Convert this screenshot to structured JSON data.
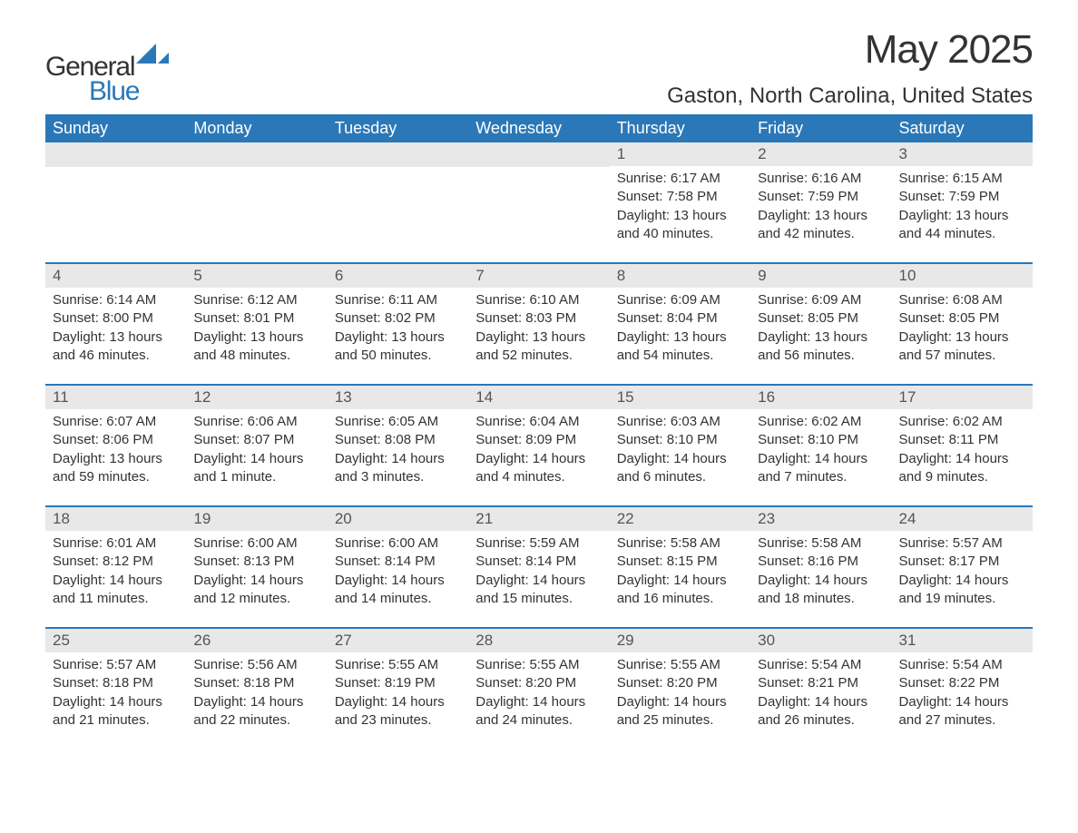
{
  "brand": {
    "part1": "General",
    "part2": "Blue",
    "brand_color": "#2a78b8"
  },
  "title": "May 2025",
  "location": "Gaston, North Carolina, United States",
  "colors": {
    "header_bg": "#2a78b8",
    "header_text": "#ffffff",
    "daynum_bg": "#e8e8e8",
    "text": "#333333",
    "border": "#2a78b8",
    "background": "#ffffff"
  },
  "weekdays": [
    "Sunday",
    "Monday",
    "Tuesday",
    "Wednesday",
    "Thursday",
    "Friday",
    "Saturday"
  ],
  "weeks": [
    [
      {
        "n": "",
        "sunrise": "",
        "sunset": "",
        "daylight": ""
      },
      {
        "n": "",
        "sunrise": "",
        "sunset": "",
        "daylight": ""
      },
      {
        "n": "",
        "sunrise": "",
        "sunset": "",
        "daylight": ""
      },
      {
        "n": "",
        "sunrise": "",
        "sunset": "",
        "daylight": ""
      },
      {
        "n": "1",
        "sunrise": "Sunrise: 6:17 AM",
        "sunset": "Sunset: 7:58 PM",
        "daylight": "Daylight: 13 hours and 40 minutes."
      },
      {
        "n": "2",
        "sunrise": "Sunrise: 6:16 AM",
        "sunset": "Sunset: 7:59 PM",
        "daylight": "Daylight: 13 hours and 42 minutes."
      },
      {
        "n": "3",
        "sunrise": "Sunrise: 6:15 AM",
        "sunset": "Sunset: 7:59 PM",
        "daylight": "Daylight: 13 hours and 44 minutes."
      }
    ],
    [
      {
        "n": "4",
        "sunrise": "Sunrise: 6:14 AM",
        "sunset": "Sunset: 8:00 PM",
        "daylight": "Daylight: 13 hours and 46 minutes."
      },
      {
        "n": "5",
        "sunrise": "Sunrise: 6:12 AM",
        "sunset": "Sunset: 8:01 PM",
        "daylight": "Daylight: 13 hours and 48 minutes."
      },
      {
        "n": "6",
        "sunrise": "Sunrise: 6:11 AM",
        "sunset": "Sunset: 8:02 PM",
        "daylight": "Daylight: 13 hours and 50 minutes."
      },
      {
        "n": "7",
        "sunrise": "Sunrise: 6:10 AM",
        "sunset": "Sunset: 8:03 PM",
        "daylight": "Daylight: 13 hours and 52 minutes."
      },
      {
        "n": "8",
        "sunrise": "Sunrise: 6:09 AM",
        "sunset": "Sunset: 8:04 PM",
        "daylight": "Daylight: 13 hours and 54 minutes."
      },
      {
        "n": "9",
        "sunrise": "Sunrise: 6:09 AM",
        "sunset": "Sunset: 8:05 PM",
        "daylight": "Daylight: 13 hours and 56 minutes."
      },
      {
        "n": "10",
        "sunrise": "Sunrise: 6:08 AM",
        "sunset": "Sunset: 8:05 PM",
        "daylight": "Daylight: 13 hours and 57 minutes."
      }
    ],
    [
      {
        "n": "11",
        "sunrise": "Sunrise: 6:07 AM",
        "sunset": "Sunset: 8:06 PM",
        "daylight": "Daylight: 13 hours and 59 minutes."
      },
      {
        "n": "12",
        "sunrise": "Sunrise: 6:06 AM",
        "sunset": "Sunset: 8:07 PM",
        "daylight": "Daylight: 14 hours and 1 minute."
      },
      {
        "n": "13",
        "sunrise": "Sunrise: 6:05 AM",
        "sunset": "Sunset: 8:08 PM",
        "daylight": "Daylight: 14 hours and 3 minutes."
      },
      {
        "n": "14",
        "sunrise": "Sunrise: 6:04 AM",
        "sunset": "Sunset: 8:09 PM",
        "daylight": "Daylight: 14 hours and 4 minutes."
      },
      {
        "n": "15",
        "sunrise": "Sunrise: 6:03 AM",
        "sunset": "Sunset: 8:10 PM",
        "daylight": "Daylight: 14 hours and 6 minutes."
      },
      {
        "n": "16",
        "sunrise": "Sunrise: 6:02 AM",
        "sunset": "Sunset: 8:10 PM",
        "daylight": "Daylight: 14 hours and 7 minutes."
      },
      {
        "n": "17",
        "sunrise": "Sunrise: 6:02 AM",
        "sunset": "Sunset: 8:11 PM",
        "daylight": "Daylight: 14 hours and 9 minutes."
      }
    ],
    [
      {
        "n": "18",
        "sunrise": "Sunrise: 6:01 AM",
        "sunset": "Sunset: 8:12 PM",
        "daylight": "Daylight: 14 hours and 11 minutes."
      },
      {
        "n": "19",
        "sunrise": "Sunrise: 6:00 AM",
        "sunset": "Sunset: 8:13 PM",
        "daylight": "Daylight: 14 hours and 12 minutes."
      },
      {
        "n": "20",
        "sunrise": "Sunrise: 6:00 AM",
        "sunset": "Sunset: 8:14 PM",
        "daylight": "Daylight: 14 hours and 14 minutes."
      },
      {
        "n": "21",
        "sunrise": "Sunrise: 5:59 AM",
        "sunset": "Sunset: 8:14 PM",
        "daylight": "Daylight: 14 hours and 15 minutes."
      },
      {
        "n": "22",
        "sunrise": "Sunrise: 5:58 AM",
        "sunset": "Sunset: 8:15 PM",
        "daylight": "Daylight: 14 hours and 16 minutes."
      },
      {
        "n": "23",
        "sunrise": "Sunrise: 5:58 AM",
        "sunset": "Sunset: 8:16 PM",
        "daylight": "Daylight: 14 hours and 18 minutes."
      },
      {
        "n": "24",
        "sunrise": "Sunrise: 5:57 AM",
        "sunset": "Sunset: 8:17 PM",
        "daylight": "Daylight: 14 hours and 19 minutes."
      }
    ],
    [
      {
        "n": "25",
        "sunrise": "Sunrise: 5:57 AM",
        "sunset": "Sunset: 8:18 PM",
        "daylight": "Daylight: 14 hours and 21 minutes."
      },
      {
        "n": "26",
        "sunrise": "Sunrise: 5:56 AM",
        "sunset": "Sunset: 8:18 PM",
        "daylight": "Daylight: 14 hours and 22 minutes."
      },
      {
        "n": "27",
        "sunrise": "Sunrise: 5:55 AM",
        "sunset": "Sunset: 8:19 PM",
        "daylight": "Daylight: 14 hours and 23 minutes."
      },
      {
        "n": "28",
        "sunrise": "Sunrise: 5:55 AM",
        "sunset": "Sunset: 8:20 PM",
        "daylight": "Daylight: 14 hours and 24 minutes."
      },
      {
        "n": "29",
        "sunrise": "Sunrise: 5:55 AM",
        "sunset": "Sunset: 8:20 PM",
        "daylight": "Daylight: 14 hours and 25 minutes."
      },
      {
        "n": "30",
        "sunrise": "Sunrise: 5:54 AM",
        "sunset": "Sunset: 8:21 PM",
        "daylight": "Daylight: 14 hours and 26 minutes."
      },
      {
        "n": "31",
        "sunrise": "Sunrise: 5:54 AM",
        "sunset": "Sunset: 8:22 PM",
        "daylight": "Daylight: 14 hours and 27 minutes."
      }
    ]
  ]
}
